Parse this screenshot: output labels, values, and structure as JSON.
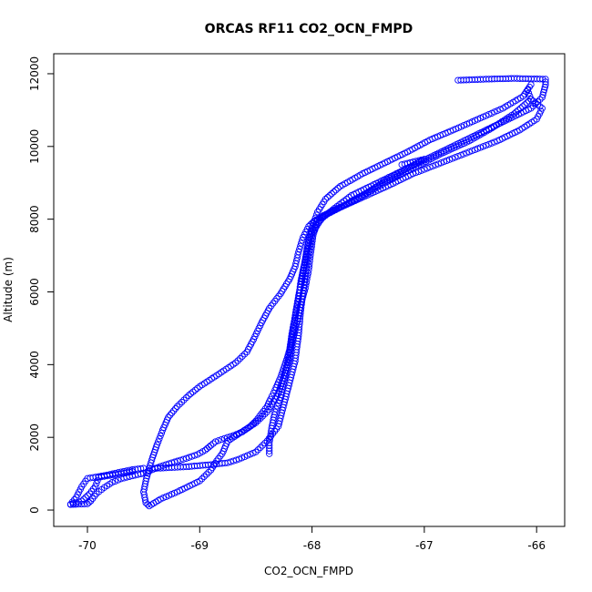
{
  "chart_data": {
    "type": "scatter",
    "title": "ORCAS RF11 CO2_OCN_FMPD",
    "xlabel": "CO2_OCN_FMPD",
    "ylabel": "Altitude (m)",
    "xlim": [
      -70.3,
      -65.75
    ],
    "ylim": [
      -450,
      12550
    ],
    "x_ticks": [
      -70,
      -69,
      -68,
      -67,
      -66
    ],
    "x_tick_labels": [
      "-70",
      "-69",
      "-68",
      "-67",
      "-66"
    ],
    "y_ticks": [
      0,
      2000,
      4000,
      6000,
      8000,
      10000,
      12000
    ],
    "y_tick_labels": [
      "0",
      "2000",
      "4000",
      "6000",
      "8000",
      "10000",
      "12000"
    ],
    "grid": false,
    "legend": "none",
    "marker": "open-circle",
    "color": "#0000ff",
    "series": [
      {
        "points": [
          [
            -70.15,
            150
          ],
          [
            -70.08,
            160
          ],
          [
            -70.0,
            170
          ],
          [
            -69.97,
            250
          ],
          [
            -69.92,
            450
          ],
          [
            -69.85,
            620
          ],
          [
            -69.78,
            760
          ],
          [
            -69.7,
            860
          ],
          [
            -69.6,
            940
          ],
          [
            -69.5,
            1010
          ],
          [
            -69.42,
            1110
          ],
          [
            -69.35,
            1200
          ],
          [
            -69.25,
            1300
          ],
          [
            -69.12,
            1420
          ],
          [
            -69.02,
            1530
          ],
          [
            -68.95,
            1650
          ],
          [
            -68.9,
            1780
          ],
          [
            -68.86,
            1880
          ],
          [
            -68.78,
            1970
          ],
          [
            -68.7,
            2050
          ],
          [
            -68.62,
            2150
          ],
          [
            -68.55,
            2300
          ],
          [
            -68.5,
            2450
          ],
          [
            -68.45,
            2650
          ],
          [
            -68.4,
            2850
          ],
          [
            -68.37,
            3050
          ],
          [
            -68.33,
            3300
          ],
          [
            -68.28,
            3650
          ],
          [
            -68.22,
            4200
          ],
          [
            -68.17,
            4700
          ],
          [
            -68.13,
            5200
          ],
          [
            -68.1,
            5650
          ],
          [
            -68.06,
            6100
          ],
          [
            -68.03,
            6600
          ],
          [
            -68.01,
            7100
          ],
          [
            -67.99,
            7550
          ],
          [
            -67.96,
            7850
          ],
          [
            -67.9,
            8050
          ],
          [
            -67.8,
            8300
          ],
          [
            -67.65,
            8650
          ],
          [
            -67.45,
            8950
          ],
          [
            -67.25,
            9250
          ],
          [
            -67.05,
            9550
          ],
          [
            -66.85,
            9850
          ],
          [
            -66.65,
            10150
          ],
          [
            -66.45,
            10450
          ],
          [
            -66.25,
            10750
          ],
          [
            -66.05,
            11050
          ],
          [
            -65.95,
            11350
          ],
          [
            -65.92,
            11700
          ],
          [
            -65.92,
            11850
          ],
          [
            -66.2,
            11870
          ],
          [
            -66.45,
            11850
          ],
          [
            -66.7,
            11820
          ]
        ]
      },
      {
        "points": [
          [
            -66.05,
            11700
          ],
          [
            -66.12,
            11380
          ],
          [
            -66.3,
            11050
          ],
          [
            -66.5,
            10780
          ],
          [
            -66.72,
            10480
          ],
          [
            -66.95,
            10180
          ],
          [
            -67.15,
            9850
          ],
          [
            -67.35,
            9550
          ],
          [
            -67.55,
            9250
          ],
          [
            -67.75,
            8900
          ],
          [
            -67.88,
            8550
          ],
          [
            -67.95,
            8200
          ],
          [
            -67.98,
            7950
          ],
          [
            -68.03,
            7800
          ],
          [
            -68.08,
            7500
          ],
          [
            -68.12,
            7100
          ],
          [
            -68.15,
            6700
          ],
          [
            -68.2,
            6350
          ],
          [
            -68.28,
            5950
          ],
          [
            -68.38,
            5550
          ],
          [
            -68.45,
            5150
          ],
          [
            -68.52,
            4700
          ],
          [
            -68.58,
            4350
          ],
          [
            -68.68,
            4050
          ],
          [
            -68.85,
            3700
          ],
          [
            -69.0,
            3400
          ],
          [
            -69.1,
            3150
          ],
          [
            -69.2,
            2850
          ],
          [
            -69.28,
            2550
          ],
          [
            -69.33,
            2200
          ],
          [
            -69.38,
            1800
          ],
          [
            -69.42,
            1450
          ],
          [
            -69.45,
            1150
          ],
          [
            -69.48,
            800
          ],
          [
            -69.5,
            500
          ],
          [
            -69.48,
            200
          ],
          [
            -69.45,
            110
          ],
          [
            -69.35,
            300
          ],
          [
            -69.2,
            500
          ],
          [
            -69.0,
            800
          ],
          [
            -68.9,
            1100
          ],
          [
            -68.85,
            1350
          ],
          [
            -68.8,
            1550
          ],
          [
            -68.75,
            1900
          ],
          [
            -68.65,
            2100
          ],
          [
            -68.5,
            2400
          ],
          [
            -68.4,
            2700
          ],
          [
            -68.3,
            3200
          ],
          [
            -68.25,
            3700
          ],
          [
            -68.2,
            4200
          ],
          [
            -68.18,
            4750
          ],
          [
            -68.15,
            5300
          ],
          [
            -68.12,
            5800
          ],
          [
            -68.1,
            6300
          ],
          [
            -68.06,
            6900
          ],
          [
            -68.02,
            7500
          ],
          [
            -67.95,
            8000
          ],
          [
            -67.7,
            8400
          ],
          [
            -67.5,
            8750
          ],
          [
            -67.35,
            9050
          ],
          [
            -67.15,
            9400
          ],
          [
            -67.0,
            9650
          ],
          [
            -67.2,
            9500
          ]
        ]
      },
      {
        "points": [
          [
            -68.38,
            1550
          ],
          [
            -68.38,
            1850
          ],
          [
            -68.36,
            2250
          ],
          [
            -68.33,
            2700
          ],
          [
            -68.28,
            3100
          ],
          [
            -68.25,
            3550
          ],
          [
            -68.22,
            4000
          ],
          [
            -68.2,
            4400
          ],
          [
            -68.18,
            4850
          ],
          [
            -68.15,
            5350
          ],
          [
            -68.12,
            5900
          ],
          [
            -68.08,
            6500
          ],
          [
            -68.05,
            7100
          ],
          [
            -68.02,
            7600
          ],
          [
            -67.98,
            7950
          ],
          [
            -67.8,
            8250
          ],
          [
            -67.55,
            8600
          ],
          [
            -67.3,
            8950
          ],
          [
            -67.1,
            9250
          ],
          [
            -66.85,
            9550
          ],
          [
            -66.6,
            9850
          ],
          [
            -66.35,
            10150
          ],
          [
            -66.15,
            10450
          ],
          [
            -66.0,
            10750
          ],
          [
            -65.95,
            11050
          ],
          [
            -66.05,
            11300
          ],
          [
            -66.08,
            11550
          ]
        ]
      },
      {
        "points": [
          [
            -69.45,
            1150
          ],
          [
            -69.35,
            1150
          ],
          [
            -69.25,
            1170
          ],
          [
            -69.12,
            1190
          ],
          [
            -68.9,
            1250
          ],
          [
            -68.75,
            1300
          ],
          [
            -68.65,
            1400
          ],
          [
            -68.5,
            1600
          ],
          [
            -68.4,
            1900
          ],
          [
            -68.3,
            2300
          ],
          [
            -68.25,
            2900
          ],
          [
            -68.2,
            3500
          ],
          [
            -68.15,
            4100
          ],
          [
            -68.12,
            4800
          ],
          [
            -68.1,
            5500
          ],
          [
            -68.07,
            6200
          ],
          [
            -68.04,
            6900
          ],
          [
            -68.0,
            7600
          ],
          [
            -67.9,
            8100
          ],
          [
            -67.6,
            8550
          ],
          [
            -67.35,
            9000
          ],
          [
            -67.1,
            9400
          ],
          [
            -66.85,
            9800
          ],
          [
            -66.6,
            10150
          ],
          [
            -66.4,
            10500
          ],
          [
            -66.2,
            10900
          ],
          [
            -66.05,
            11300
          ]
        ]
      },
      {
        "points": [
          [
            -69.5,
            1150
          ],
          [
            -69.6,
            1110
          ],
          [
            -69.7,
            1050
          ],
          [
            -69.8,
            980
          ],
          [
            -69.9,
            920
          ],
          [
            -70.0,
            870
          ],
          [
            -70.05,
            650
          ],
          [
            -70.1,
            350
          ],
          [
            -70.15,
            160
          ],
          [
            -70.05,
            250
          ],
          [
            -69.98,
            450
          ],
          [
            -69.93,
            650
          ],
          [
            -69.9,
            900
          ],
          [
            -69.7,
            1000
          ],
          [
            -69.6,
            1060
          ]
        ]
      }
    ]
  }
}
